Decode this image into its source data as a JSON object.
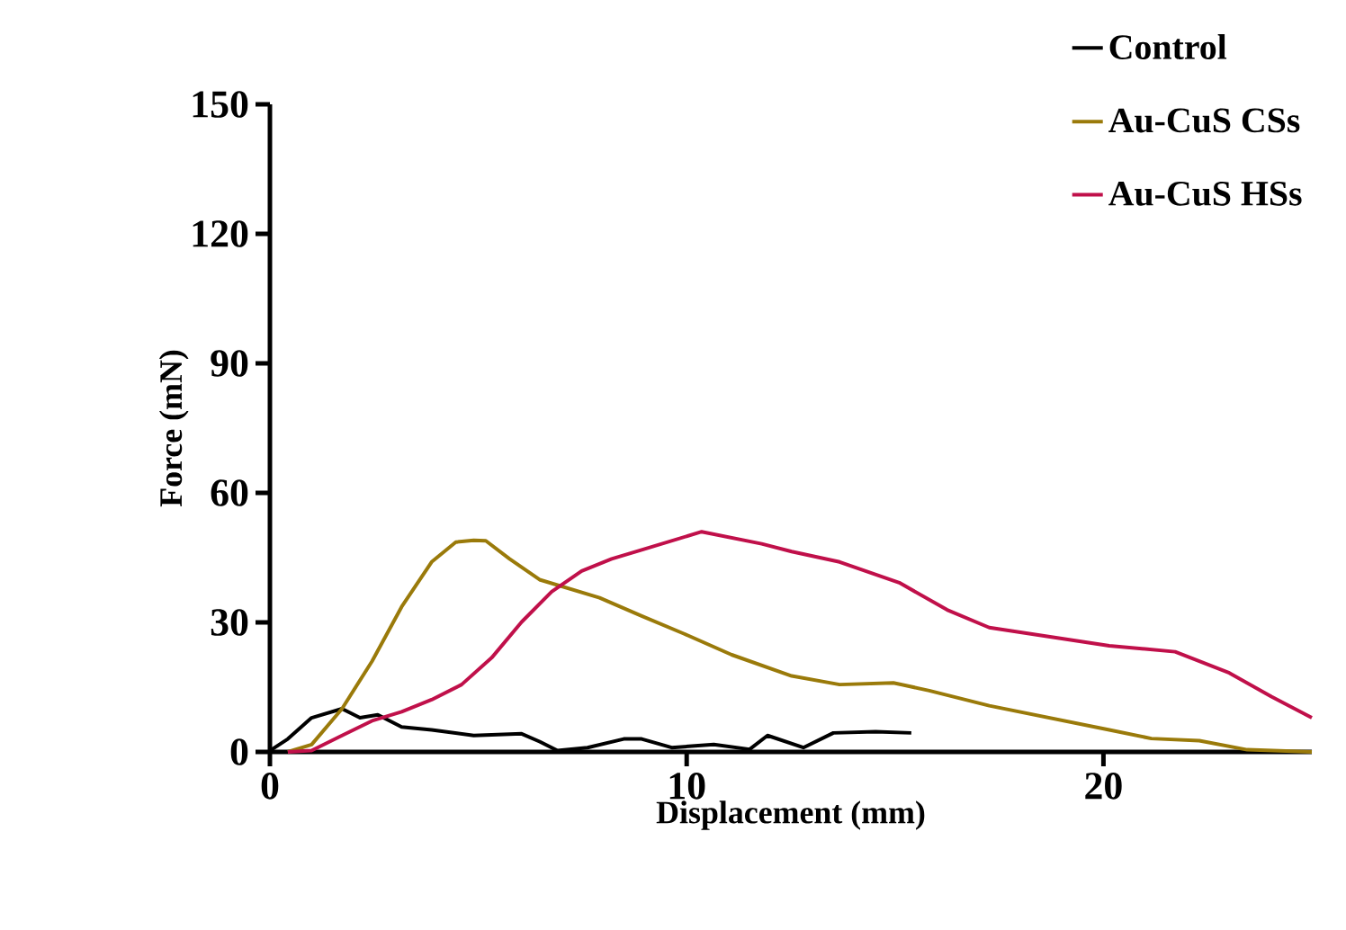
{
  "chart_data": {
    "type": "line",
    "xlabel": "Displacement (mm)",
    "ylabel": "Force (mN)",
    "xlim": [
      0,
      25
    ],
    "xticks": [
      0,
      10,
      20
    ],
    "ylim": [
      0,
      150
    ],
    "yticks": [
      0,
      30,
      60,
      90,
      120,
      150
    ],
    "grid": false,
    "legend": "top right",
    "marker": "none",
    "line_style": "solid",
    "series": [
      {
        "name": "Control",
        "color": "#000000",
        "x": [
          0,
          0.43,
          1.0,
          1.73,
          2.16,
          2.59,
          3.16,
          3.88,
          4.89,
          6.04,
          6.47,
          6.9,
          7.62,
          8.49,
          8.92,
          9.64,
          10.65,
          11.51,
          11.94,
          12.8,
          13.52,
          14.53,
          15.39
        ],
        "values": [
          0.3,
          3,
          7.9,
          10,
          7.9,
          8.6,
          5.8,
          5.1,
          3.8,
          4.2,
          2.4,
          0.3,
          1,
          3,
          3,
          1,
          1.7,
          0.6,
          3.8,
          1,
          4.4,
          4.7,
          4.4
        ]
      },
      {
        "name": "Au-CuS CSs",
        "color": "#9a7a0a",
        "x": [
          0.43,
          1.0,
          1.73,
          2.45,
          3.16,
          3.88,
          4.46,
          4.89,
          5.18,
          5.75,
          6.47,
          7.19,
          7.91,
          8.92,
          9.93,
          11.08,
          12.52,
          13.67,
          14.96,
          15.82,
          17.26,
          18.7,
          20.14,
          21.15,
          22.3,
          23.45,
          25.0
        ],
        "values": [
          0,
          1.7,
          10,
          21,
          33.6,
          44,
          48.6,
          49,
          48.9,
          44.7,
          39.9,
          37.8,
          35.7,
          31.5,
          27.4,
          22.5,
          17.6,
          15.6,
          16,
          14.2,
          10.7,
          7.9,
          5.1,
          3.1,
          2.6,
          0.5,
          0
        ]
      },
      {
        "name": "Au-CuS HSs",
        "color": "#c0104a",
        "x": [
          0.43,
          1.0,
          1.73,
          2.45,
          3.16,
          3.88,
          4.6,
          5.32,
          6.04,
          6.76,
          7.48,
          8.2,
          8.92,
          9.64,
          10.36,
          11.08,
          11.8,
          12.52,
          13.67,
          15.1,
          16.25,
          17.26,
          18.7,
          20.14,
          21.72,
          23.02,
          24.03,
          25.0
        ],
        "values": [
          0,
          0.3,
          3.8,
          7.2,
          9.3,
          12.1,
          15.6,
          21.8,
          30.1,
          37.1,
          41.9,
          44.7,
          46.8,
          48.9,
          51,
          49.6,
          48.2,
          46.4,
          44,
          39.2,
          32.9,
          28.8,
          26.7,
          24.6,
          23.2,
          18.3,
          12.8,
          7.9
        ]
      }
    ]
  }
}
